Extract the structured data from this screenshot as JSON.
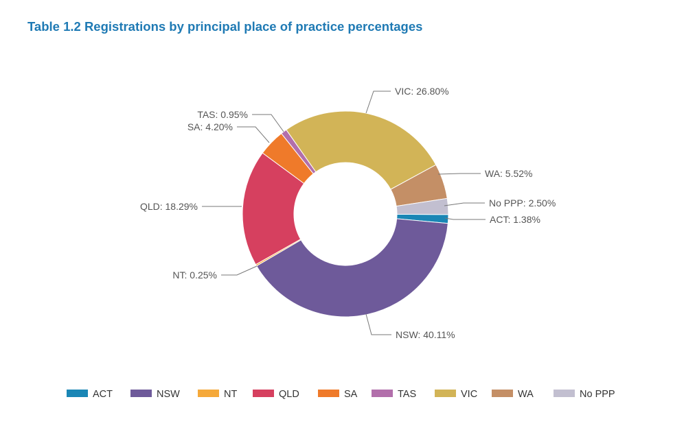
{
  "title": "Table 1.2 Registrations by principal place of practice percentages",
  "chart_data": {
    "type": "pie",
    "variant": "donut",
    "title": "Table 1.2 Registrations by principal place of practice percentages",
    "unit": "%",
    "categories": [
      "ACT",
      "NSW",
      "NT",
      "QLD",
      "SA",
      "TAS",
      "VIC",
      "WA",
      "No PPP"
    ],
    "values": [
      1.38,
      40.11,
      0.25,
      18.29,
      4.2,
      0.95,
      26.8,
      5.52,
      2.5
    ],
    "value_labels": [
      "1.38%",
      "40.11%",
      "0.25%",
      "18.29%",
      "4.20%",
      "0.95%",
      "26.80%",
      "5.52%",
      "2.50%"
    ],
    "colors": [
      "#1a86b5",
      "#6e5a9a",
      "#f5a93a",
      "#d6405f",
      "#ef7a2a",
      "#b26fab",
      "#d2b457",
      "#c48f66",
      "#c2bfd0"
    ],
    "legend_position": "bottom"
  }
}
